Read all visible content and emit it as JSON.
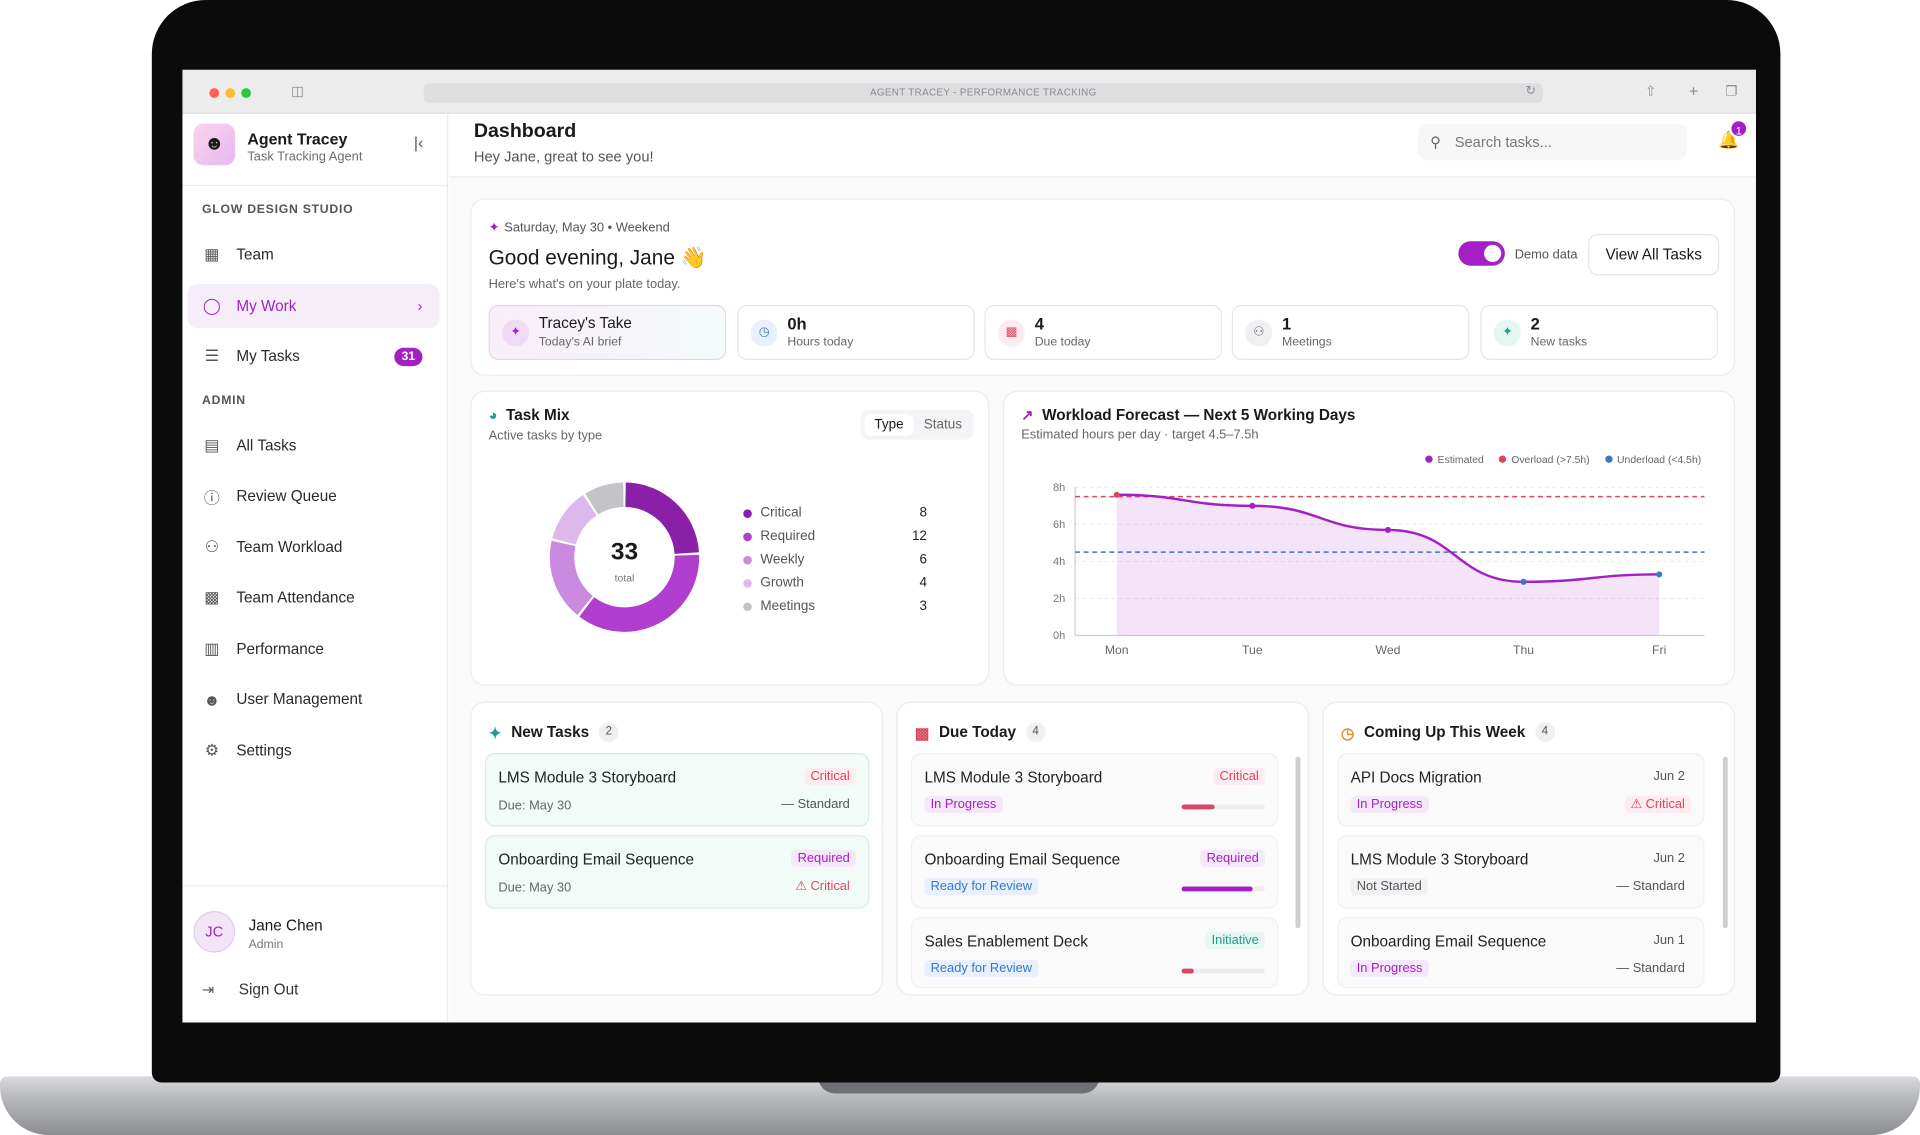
{
  "browser": {
    "url_title": "AGENT TRACEY - PERFORMANCE TRACKING"
  },
  "brand": {
    "name": "Agent Tracey",
    "subtitle": "Task Tracking Agent"
  },
  "sidebar": {
    "section_org": "GLOW DESIGN STUDIO",
    "section_admin": "ADMIN",
    "items": [
      {
        "label": "Team",
        "icon": "grid-icon"
      },
      {
        "label": "My Work",
        "icon": "user-icon"
      },
      {
        "label": "My Tasks",
        "icon": "list-icon",
        "badge": "31"
      },
      {
        "label": "All Tasks",
        "icon": "clipboard-icon"
      },
      {
        "label": "Review Queue",
        "icon": "alert-circle-icon"
      },
      {
        "label": "Team Workload",
        "icon": "users-icon"
      },
      {
        "label": "Team Attendance",
        "icon": "calendar-icon"
      },
      {
        "label": "Performance",
        "icon": "bar-chart-icon"
      },
      {
        "label": "User Management",
        "icon": "user-cog-icon"
      },
      {
        "label": "Settings",
        "icon": "gear-icon"
      }
    ],
    "user": {
      "initials": "JC",
      "name": "Jane Chen",
      "role": "Admin"
    },
    "signout": "Sign Out"
  },
  "header": {
    "title": "Dashboard",
    "subtitle": "Hey Jane, great to see you!",
    "search_placeholder": "Search tasks...",
    "notifications": "1"
  },
  "greeting": {
    "date": "Saturday, May 30 • Weekend",
    "title": "Good evening, Jane 👋",
    "subtitle": "Here's what's on your plate today.",
    "demo_label": "Demo data",
    "view_all": "View All Tasks",
    "kpis": [
      {
        "value": "Tracey's Take",
        "label": "Today's AI brief"
      },
      {
        "value": "0h",
        "label": "Hours today"
      },
      {
        "value": "4",
        "label": "Due today"
      },
      {
        "value": "1",
        "label": "Meetings"
      },
      {
        "value": "2",
        "label": "New tasks"
      }
    ]
  },
  "task_mix": {
    "title": "Task Mix",
    "subtitle": "Active tasks by type",
    "tab_type": "Type",
    "tab_status": "Status",
    "total": "33",
    "total_label": "total"
  },
  "forecast": {
    "title": "Workload Forecast — Next 5 Working Days",
    "subtitle": "Estimated hours per day · target 4.5–7.5h",
    "legend": [
      "Estimated",
      "Overload (>7.5h)",
      "Underload (<4.5h)"
    ]
  },
  "chart_data": [
    {
      "type": "pie",
      "title": "Task Mix",
      "categories": [
        "Critical",
        "Required",
        "Weekly",
        "Growth",
        "Meetings"
      ],
      "values": [
        8,
        12,
        6,
        4,
        3
      ],
      "colors": [
        "#8a1fa8",
        "#b03fd0",
        "#c98ae0",
        "#dcb8ec",
        "#c4c4c8"
      ]
    },
    {
      "type": "line",
      "title": "Workload Forecast — Next 5 Working Days",
      "x": [
        "Mon",
        "Tue",
        "Wed",
        "Thu",
        "Fri"
      ],
      "series": [
        {
          "name": "Estimated",
          "values": [
            7.6,
            7.0,
            5.7,
            2.9,
            3.3
          ]
        }
      ],
      "overload_threshold": 7.5,
      "underload_threshold": 4.5,
      "yticks": [
        "0h",
        "2h",
        "4h",
        "6h",
        "8h"
      ],
      "ylim": [
        0,
        8
      ],
      "grid": true,
      "legend_position": "top-right",
      "colors": {
        "line": "#a321c4",
        "overload": "#d9485f",
        "underload": "#3a77c8"
      }
    }
  ],
  "new_tasks": {
    "title": "New Tasks",
    "count": "2",
    "items": [
      {
        "title": "LMS Module 3 Storyboard",
        "sub": "Due: May 30",
        "tag": "Critical",
        "meta": "— Standard"
      },
      {
        "title": "Onboarding Email Sequence",
        "sub": "Due: May 30",
        "tag": "Required",
        "meta": "⚠ Critical"
      }
    ]
  },
  "due_today": {
    "title": "Due Today",
    "count": "4",
    "items": [
      {
        "title": "LMS Module 3 Storyboard",
        "status": "In Progress",
        "tag": "Critical",
        "progress": 0.4
      },
      {
        "title": "Onboarding Email Sequence",
        "status": "Ready for Review",
        "tag": "Required",
        "progress": 0.85
      },
      {
        "title": "Sales Enablement Deck",
        "status": "Ready for Review",
        "tag": "Initiative",
        "progress": 0.15
      }
    ]
  },
  "coming_up": {
    "title": "Coming Up This Week",
    "count": "4",
    "items": [
      {
        "title": "API Docs Migration",
        "status": "In Progress",
        "date": "Jun 2",
        "meta": "⚠ Critical"
      },
      {
        "title": "LMS Module 3 Storyboard",
        "status": "Not Started",
        "date": "Jun 2",
        "meta": "— Standard"
      },
      {
        "title": "Onboarding Email Sequence",
        "status": "In Progress",
        "date": "Jun 1",
        "meta": "— Standard"
      }
    ]
  }
}
